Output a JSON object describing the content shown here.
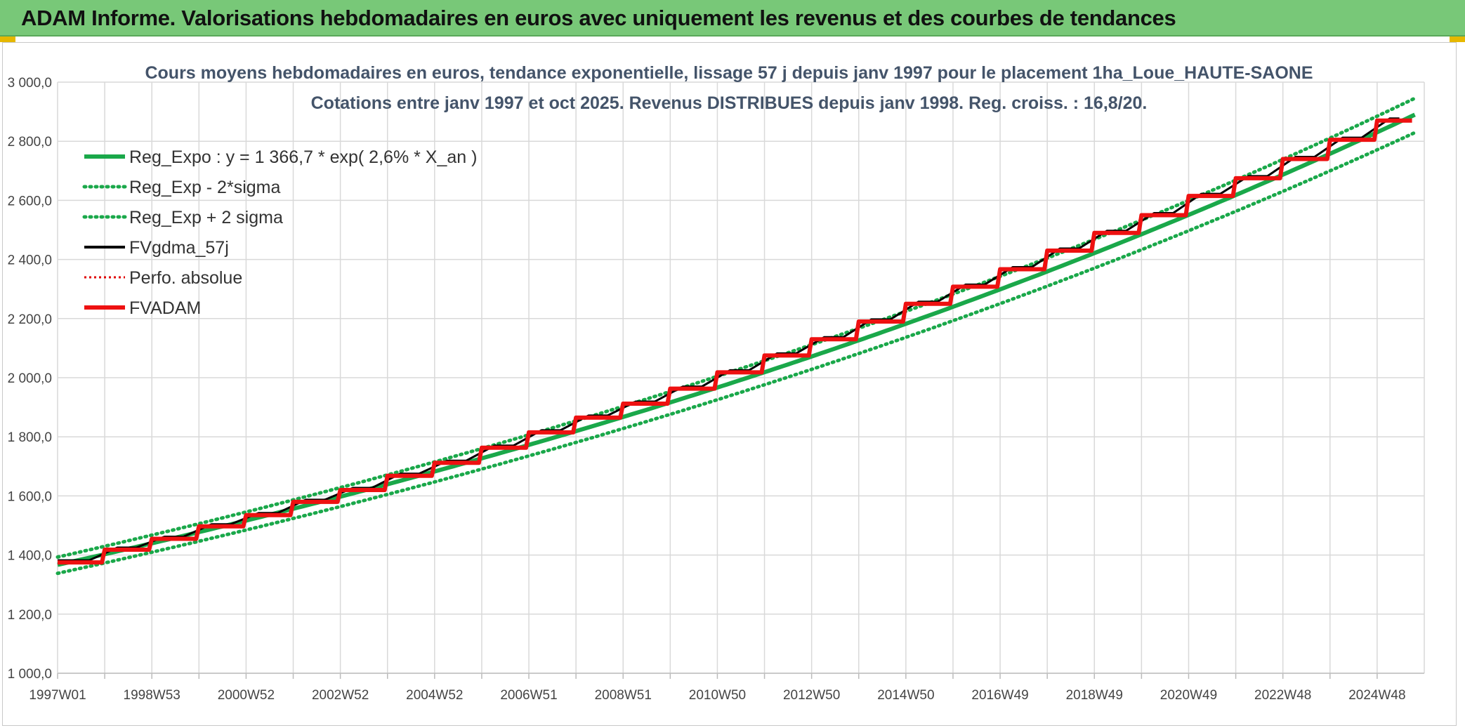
{
  "banner": {
    "title": "ADAM Informe. Valorisations hebdomadaires en euros avec uniquement les revenus et des courbes de tendances",
    "color": "#78c878"
  },
  "chart_data": {
    "type": "line",
    "title_lines": [
      "Cours moyens hebdomadaires en euros, tendance exponentielle, lissage 57 j depuis janv 1997 pour le placement 1ha_Loue_HAUTE-SAONE",
      "Cotations entre janv 1997 et oct 2025. Revenus DISTRIBUES depuis janv 1998. Reg. croiss. : 16,8/20."
    ],
    "x_start_year": 1997,
    "x_end_year": 2025.8,
    "xlim": [
      1997,
      2026.0
    ],
    "ylim": [
      1000,
      3000
    ],
    "yticks": [
      1000,
      1200,
      1400,
      1600,
      1800,
      2000,
      2200,
      2400,
      2600,
      2800,
      3000
    ],
    "ytick_labels": [
      "1 000,0",
      "1 200,0",
      "1 400,0",
      "1 600,0",
      "1 800,0",
      "2 000,0",
      "2 200,0",
      "2 400,0",
      "2 600,0",
      "2 800,0",
      "3 000,0"
    ],
    "xtick_labels": [
      "1997W01",
      "1998W53",
      "2000W52",
      "2002W52",
      "2004W52",
      "2006W51",
      "2008W51",
      "2010W50",
      "2012W50",
      "2014W50",
      "2016W49",
      "2018W49",
      "2020W49",
      "2022W48",
      "2024W48"
    ],
    "xtick_years": [
      1997,
      1999,
      2001,
      2003,
      2005,
      2007,
      2009,
      2011,
      2013,
      2015,
      2017,
      2019,
      2021,
      2023,
      2025
    ],
    "grid": true,
    "legend_position": "top-left",
    "series": [
      {
        "name": "Reg_Expo : y = 1 366,7 * exp( 2,6% *  X_an )",
        "color": "#1aa84a",
        "style": "solid-thick",
        "y0": 1366.7,
        "rate": 0.026
      },
      {
        "name": "Reg_Exp - 2*sigma",
        "color": "#1aa84a",
        "style": "dotted",
        "y0": 1338,
        "rate": 0.026
      },
      {
        "name": "Reg_Exp + 2 sigma",
        "color": "#1aa84a",
        "style": "dotted",
        "y0": 1393,
        "rate": 0.026
      },
      {
        "name": "FVgdma_57j",
        "color": "#000000",
        "style": "solid"
      },
      {
        "name": "Perfo. absolue",
        "color": "#e00000",
        "style": "dotted-red"
      },
      {
        "name": "FVADAM",
        "color": "#ee1111",
        "style": "solid-thick"
      }
    ],
    "fvadam_steps": [
      {
        "year": 1997.0,
        "value": 1375
      },
      {
        "year": 1998.0,
        "value": 1418
      },
      {
        "year": 1999.0,
        "value": 1455
      },
      {
        "year": 2000.0,
        "value": 1497
      },
      {
        "year": 2001.0,
        "value": 1535
      },
      {
        "year": 2002.0,
        "value": 1580
      },
      {
        "year": 2003.0,
        "value": 1620
      },
      {
        "year": 2004.0,
        "value": 1668
      },
      {
        "year": 2005.0,
        "value": 1712
      },
      {
        "year": 2006.0,
        "value": 1763
      },
      {
        "year": 2007.0,
        "value": 1815
      },
      {
        "year": 2008.0,
        "value": 1865
      },
      {
        "year": 2009.0,
        "value": 1912
      },
      {
        "year": 2010.0,
        "value": 1963
      },
      {
        "year": 2011.0,
        "value": 2018
      },
      {
        "year": 2012.0,
        "value": 2075
      },
      {
        "year": 2013.0,
        "value": 2130
      },
      {
        "year": 2014.0,
        "value": 2190
      },
      {
        "year": 2015.0,
        "value": 2250
      },
      {
        "year": 2016.0,
        "value": 2308
      },
      {
        "year": 2017.0,
        "value": 2367
      },
      {
        "year": 2018.0,
        "value": 2430
      },
      {
        "year": 2019.0,
        "value": 2490
      },
      {
        "year": 2020.0,
        "value": 2550
      },
      {
        "year": 2021.0,
        "value": 2615
      },
      {
        "year": 2022.0,
        "value": 2675
      },
      {
        "year": 2023.0,
        "value": 2740
      },
      {
        "year": 2024.0,
        "value": 2805
      },
      {
        "year": 2025.0,
        "value": 2870
      }
    ]
  }
}
